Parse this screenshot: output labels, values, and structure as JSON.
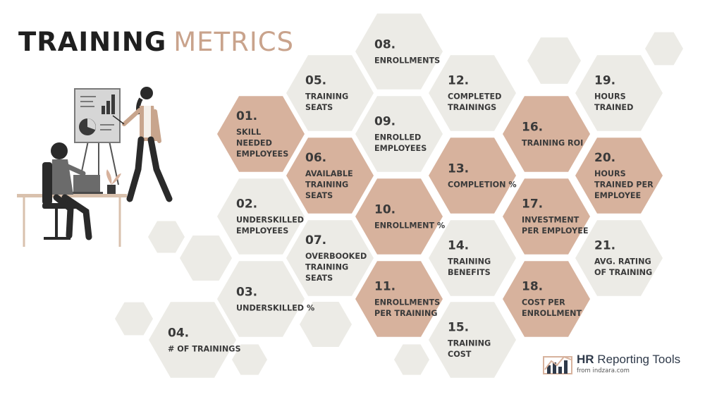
{
  "title": {
    "bold": "TRAINING",
    "light": "METRICS"
  },
  "colors": {
    "grey_hex": "#ecebe6",
    "tan_hex": "#d7b29d",
    "text": "#3a3a3a",
    "title_light": "#c9a38c"
  },
  "metrics": [
    {
      "num": "01.",
      "lines": [
        "SKILL",
        "NEEDED",
        "EMPLOYEES"
      ],
      "style": "tan"
    },
    {
      "num": "02.",
      "lines": [
        "UNDERSKILLED",
        "EMPLOYEES"
      ],
      "style": "grey"
    },
    {
      "num": "03.",
      "lines": [
        "UNDERSKILLED %"
      ],
      "style": "grey"
    },
    {
      "num": "04.",
      "lines": [
        "# OF TRAININGS"
      ],
      "style": "grey"
    },
    {
      "num": "05.",
      "lines": [
        "TRAINING",
        "SEATS"
      ],
      "style": "grey"
    },
    {
      "num": "06.",
      "lines": [
        "AVAILABLE",
        "TRAINING",
        "SEATS"
      ],
      "style": "tan"
    },
    {
      "num": "07.",
      "lines": [
        "OVERBOOKED",
        "TRAINING",
        "SEATS"
      ],
      "style": "grey"
    },
    {
      "num": "08.",
      "lines": [
        "ENROLLMENTS"
      ],
      "style": "grey"
    },
    {
      "num": "09.",
      "lines": [
        "ENROLLED",
        "EMPLOYEES"
      ],
      "style": "grey"
    },
    {
      "num": "10.",
      "lines": [
        "ENROLLMENT %"
      ],
      "style": "tan"
    },
    {
      "num": "11.",
      "lines": [
        "ENROLLMENTS",
        "PER TRAINING"
      ],
      "style": "tan"
    },
    {
      "num": "12.",
      "lines": [
        "COMPLETED",
        "TRAININGS"
      ],
      "style": "grey"
    },
    {
      "num": "13.",
      "lines": [
        "COMPLETION %"
      ],
      "style": "tan"
    },
    {
      "num": "14.",
      "lines": [
        "TRAINING",
        "BENEFITS"
      ],
      "style": "grey"
    },
    {
      "num": "15.",
      "lines": [
        "TRAINING",
        "COST"
      ],
      "style": "grey"
    },
    {
      "num": "16.",
      "lines": [
        "TRAINING ROI"
      ],
      "style": "tan"
    },
    {
      "num": "17.",
      "lines": [
        "INVESTMENT",
        "PER EMPLOYEE"
      ],
      "style": "tan"
    },
    {
      "num": "18.",
      "lines": [
        "COST PER",
        "ENROLLMENT"
      ],
      "style": "tan"
    },
    {
      "num": "19.",
      "lines": [
        "HOURS",
        "TRAINED"
      ],
      "style": "grey"
    },
    {
      "num": "20.",
      "lines": [
        "HOURS",
        "TRAINED PER",
        "EMPLOYEE"
      ],
      "style": "tan"
    },
    {
      "num": "21.",
      "lines": [
        "AVG. RATING",
        "OF TRAINING"
      ],
      "style": "grey"
    }
  ],
  "brand": {
    "name_bold": "HR",
    "name_rest": " Reporting Tools",
    "sub": "from indzara.com"
  }
}
